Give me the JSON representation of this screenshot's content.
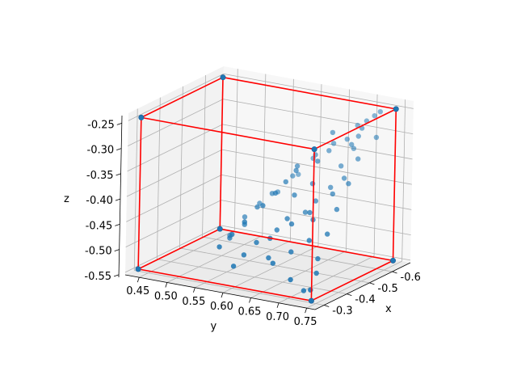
{
  "chart_data": {
    "type": "scatter3d",
    "title": "",
    "xlabel": "x",
    "ylabel": "y",
    "zlabel": "z",
    "xlim": [
      -0.68,
      -0.26
    ],
    "ylim": [
      0.425,
      0.765
    ],
    "zlim": [
      -0.555,
      -0.235
    ],
    "x_ticks": [
      "-0.6",
      "-0.5",
      "-0.4",
      "-0.3"
    ],
    "x_tick_values": [
      -0.6,
      -0.5,
      -0.4,
      -0.3
    ],
    "y_ticks": [
      "0.45",
      "0.50",
      "0.55",
      "0.60",
      "0.65",
      "0.70",
      "0.75"
    ],
    "y_tick_values": [
      0.45,
      0.5,
      0.55,
      0.6,
      0.65,
      0.7,
      0.75
    ],
    "z_ticks": [
      "-0.25",
      "-0.30",
      "-0.35",
      "-0.40",
      "-0.45",
      "-0.50",
      "-0.55"
    ],
    "z_tick_values": [
      -0.25,
      -0.3,
      -0.35,
      -0.4,
      -0.45,
      -0.5,
      -0.55
    ],
    "grid": true,
    "colors": {
      "points": "#1f77b4",
      "box": "#ff0000",
      "pane": "#f2f2f2",
      "grid": "#b0b0b0"
    },
    "bounding_box": {
      "x": [
        -0.64,
        -0.28
      ],
      "y": [
        0.44,
        0.75
      ],
      "z": [
        -0.545,
        -0.245
      ]
    },
    "series": [
      {
        "values": [
          [
            -0.64,
            0.44,
            -0.245
          ],
          [
            -0.28,
            0.44,
            -0.245
          ],
          [
            -0.64,
            0.75,
            -0.245
          ],
          [
            -0.28,
            0.75,
            -0.245
          ],
          [
            -0.64,
            0.44,
            -0.545
          ],
          [
            -0.28,
            0.44,
            -0.545
          ],
          [
            -0.64,
            0.75,
            -0.545
          ],
          [
            -0.28,
            0.75,
            -0.545
          ],
          [
            -0.62,
            0.72,
            -0.26
          ],
          [
            -0.61,
            0.71,
            -0.27
          ],
          [
            -0.62,
            0.69,
            -0.285
          ],
          [
            -0.6,
            0.7,
            -0.3
          ],
          [
            -0.62,
            0.73,
            -0.25
          ],
          [
            -0.6,
            0.68,
            -0.31
          ],
          [
            -0.58,
            0.7,
            -0.32
          ],
          [
            -0.59,
            0.71,
            -0.28
          ],
          [
            -0.57,
            0.66,
            -0.33
          ],
          [
            -0.55,
            0.69,
            -0.35
          ],
          [
            -0.56,
            0.67,
            -0.29
          ],
          [
            -0.54,
            0.7,
            -0.37
          ],
          [
            -0.52,
            0.66,
            -0.34
          ],
          [
            -0.53,
            0.68,
            -0.39
          ],
          [
            -0.5,
            0.63,
            -0.36
          ],
          [
            -0.49,
            0.67,
            -0.41
          ],
          [
            -0.48,
            0.62,
            -0.38
          ],
          [
            -0.47,
            0.66,
            -0.43
          ],
          [
            -0.46,
            0.61,
            -0.4
          ],
          [
            -0.44,
            0.64,
            -0.44
          ],
          [
            -0.43,
            0.6,
            -0.42
          ],
          [
            -0.42,
            0.63,
            -0.46
          ],
          [
            -0.4,
            0.58,
            -0.45
          ],
          [
            -0.38,
            0.61,
            -0.48
          ],
          [
            -0.37,
            0.57,
            -0.47
          ],
          [
            -0.35,
            0.6,
            -0.5
          ],
          [
            -0.34,
            0.56,
            -0.49
          ],
          [
            -0.33,
            0.59,
            -0.52
          ],
          [
            -0.31,
            0.7,
            -0.52
          ],
          [
            -0.32,
            0.72,
            -0.54
          ],
          [
            -0.3,
            0.74,
            -0.53
          ],
          [
            -0.33,
            0.66,
            -0.5
          ],
          [
            -0.36,
            0.68,
            -0.48
          ],
          [
            -0.39,
            0.7,
            -0.46
          ],
          [
            -0.41,
            0.66,
            -0.44
          ],
          [
            -0.44,
            0.68,
            -0.42
          ],
          [
            -0.47,
            0.64,
            -0.4
          ],
          [
            -0.5,
            0.66,
            -0.38
          ],
          [
            -0.53,
            0.62,
            -0.36
          ],
          [
            -0.56,
            0.64,
            -0.34
          ],
          [
            -0.59,
            0.66,
            -0.32
          ],
          [
            -0.55,
            0.72,
            -0.33
          ],
          [
            -0.51,
            0.72,
            -0.37
          ],
          [
            -0.46,
            0.72,
            -0.41
          ],
          [
            -0.42,
            0.72,
            -0.45
          ],
          [
            -0.38,
            0.72,
            -0.49
          ],
          [
            -0.35,
            0.73,
            -0.51
          ],
          [
            -0.58,
            0.74,
            -0.29
          ],
          [
            -0.52,
            0.58,
            -0.42
          ],
          [
            -0.48,
            0.57,
            -0.44
          ],
          [
            -0.45,
            0.56,
            -0.47
          ],
          [
            -0.41,
            0.55,
            -0.49
          ],
          [
            -0.56,
            0.6,
            -0.39
          ],
          [
            -0.6,
            0.62,
            -0.36
          ],
          [
            -0.54,
            0.55,
            -0.45
          ],
          [
            -0.5,
            0.54,
            -0.47
          ],
          [
            -0.46,
            0.53,
            -0.5
          ],
          [
            -0.57,
            0.57,
            -0.43
          ],
          [
            -0.61,
            0.59,
            -0.4
          ],
          [
            -0.39,
            0.63,
            -0.47
          ],
          [
            -0.36,
            0.64,
            -0.5
          ],
          [
            -0.43,
            0.69,
            -0.43
          ],
          [
            -0.49,
            0.7,
            -0.39
          ],
          [
            -0.57,
            0.7,
            -0.31
          ]
        ]
      }
    ]
  }
}
